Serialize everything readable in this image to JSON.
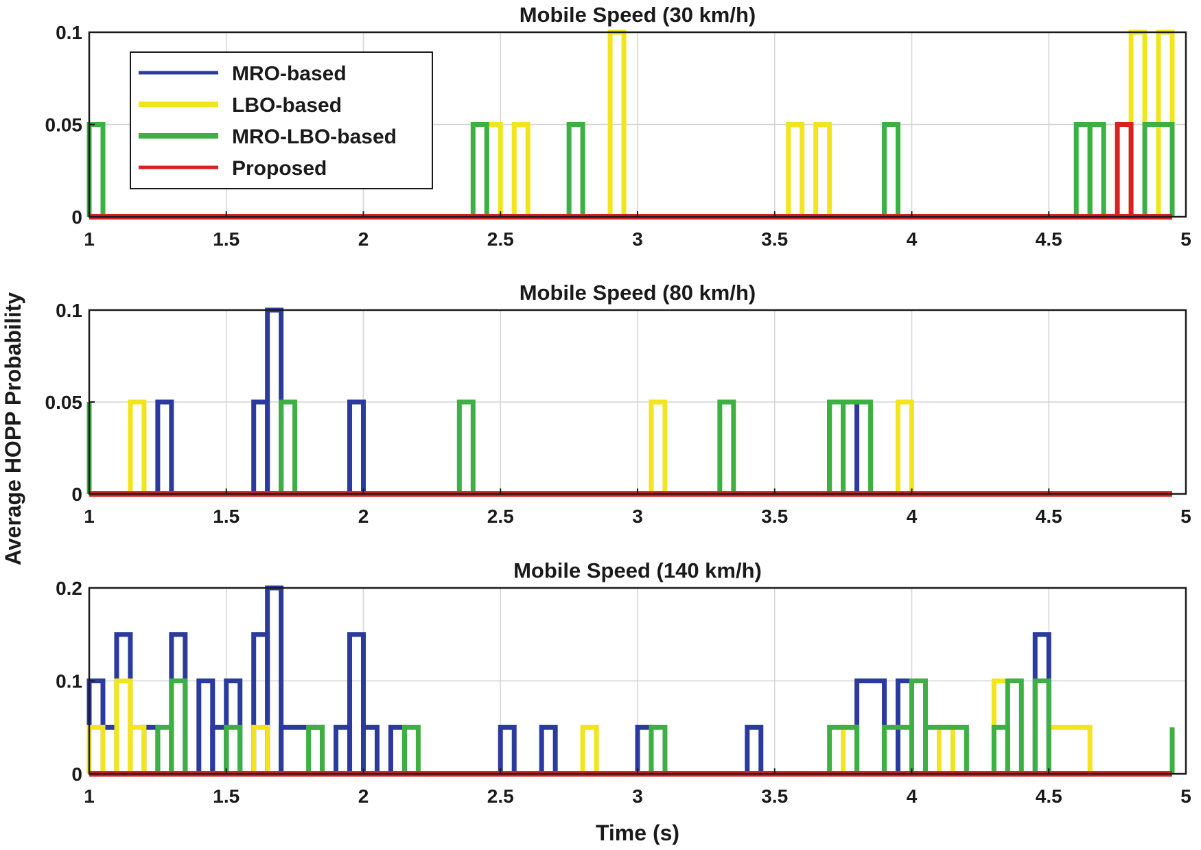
{
  "ylabel": "Average HOPP Probability",
  "xlabel": "Time (s)",
  "series_meta": [
    {
      "name": "MRO-based",
      "color": "#2b3a9e"
    },
    {
      "name": "LBO-based",
      "color": "#f2e51e"
    },
    {
      "name": "MRO-LBO-based",
      "color": "#3cb043"
    },
    {
      "name": "Proposed",
      "color": "#d92121"
    }
  ],
  "chart_data": [
    {
      "type": "line",
      "title": "Mobile Speed (30 km/h)",
      "xlim": [
        1,
        5
      ],
      "ylim": [
        0,
        0.1
      ],
      "xticks": [
        "1",
        "1.5",
        "2",
        "2.5",
        "3",
        "3.5",
        "4",
        "4.5",
        "5"
      ],
      "yticks": [
        "0",
        "0.05",
        "0.1"
      ],
      "legend": "top-left",
      "series": [
        {
          "name": "MRO-based",
          "pulses": []
        },
        {
          "name": "LBO-based",
          "pulses": [
            [
              2.45,
              2.5,
              0.05
            ],
            [
              2.55,
              2.6,
              0.05
            ],
            [
              2.9,
              2.95,
              0.1
            ],
            [
              3.55,
              3.6,
              0.05
            ],
            [
              3.65,
              3.7,
              0.05
            ],
            [
              4.8,
              4.85,
              0.1
            ],
            [
              4.9,
              4.95,
              0.1
            ]
          ]
        },
        {
          "name": "MRO-LBO-based",
          "pulses": [
            [
              1.0,
              1.05,
              0.05
            ],
            [
              2.4,
              2.45,
              0.05
            ],
            [
              2.75,
              2.8,
              0.05
            ],
            [
              3.9,
              3.95,
              0.05
            ],
            [
              4.6,
              4.65,
              0.05
            ],
            [
              4.65,
              4.7,
              0.05
            ],
            [
              4.85,
              4.95,
              0.05
            ]
          ]
        },
        {
          "name": "Proposed",
          "pulses": [
            [
              4.75,
              4.8,
              0.05
            ]
          ]
        }
      ]
    },
    {
      "type": "line",
      "title": "Mobile Speed (80 km/h)",
      "xlim": [
        1,
        5
      ],
      "ylim": [
        0,
        0.1
      ],
      "xticks": [
        "1",
        "1.5",
        "2",
        "2.5",
        "3",
        "3.5",
        "4",
        "4.5",
        "5"
      ],
      "yticks": [
        "0",
        "0.05",
        "0.1"
      ],
      "series": [
        {
          "name": "MRO-based",
          "pulses": [
            [
              1.25,
              1.3,
              0.05
            ],
            [
              1.6,
              1.65,
              0.05
            ],
            [
              1.65,
              1.7,
              0.1
            ],
            [
              1.95,
              2.0,
              0.05
            ],
            [
              3.7,
              3.8,
              0.05
            ]
          ]
        },
        {
          "name": "LBO-based",
          "pulses": [
            [
              1.15,
              1.2,
              0.05
            ],
            [
              3.05,
              3.1,
              0.05
            ],
            [
              3.95,
              4.0,
              0.05
            ]
          ]
        },
        {
          "name": "MRO-LBO-based",
          "pulses": [
            [
              1.0,
              1.0,
              0.05
            ],
            [
              1.7,
              1.75,
              0.05
            ],
            [
              2.35,
              2.4,
              0.05
            ],
            [
              3.3,
              3.35,
              0.05
            ],
            [
              3.7,
              3.75,
              0.05
            ],
            [
              3.75,
              3.85,
              0.05
            ]
          ]
        },
        {
          "name": "Proposed",
          "pulses": []
        }
      ]
    },
    {
      "type": "line",
      "title": "Mobile Speed (140 km/h)",
      "xlim": [
        1,
        5
      ],
      "ylim": [
        0,
        0.2
      ],
      "xticks": [
        "1",
        "1.5",
        "2",
        "2.5",
        "3",
        "3.5",
        "4",
        "4.5",
        "5"
      ],
      "yticks": [
        "0",
        "0.1",
        "0.2"
      ],
      "series": [
        {
          "name": "MRO-based",
          "pulses": [
            [
              1.0,
              1.05,
              0.1
            ],
            [
              1.05,
              1.1,
              0.05
            ],
            [
              1.1,
              1.15,
              0.15
            ],
            [
              1.2,
              1.25,
              0.05
            ],
            [
              1.3,
              1.35,
              0.15
            ],
            [
              1.4,
              1.45,
              0.1
            ],
            [
              1.45,
              1.5,
              0.05
            ],
            [
              1.5,
              1.55,
              0.1
            ],
            [
              1.6,
              1.65,
              0.15
            ],
            [
              1.65,
              1.7,
              0.2
            ],
            [
              1.7,
              1.85,
              0.05
            ],
            [
              1.9,
              1.95,
              0.05
            ],
            [
              1.95,
              2.0,
              0.15
            ],
            [
              2.0,
              2.05,
              0.05
            ],
            [
              2.1,
              2.15,
              0.05
            ],
            [
              2.5,
              2.55,
              0.05
            ],
            [
              2.65,
              2.7,
              0.05
            ],
            [
              3.0,
              3.05,
              0.05
            ],
            [
              3.4,
              3.45,
              0.05
            ],
            [
              3.8,
              3.9,
              0.1
            ],
            [
              3.95,
              4.0,
              0.1
            ],
            [
              4.45,
              4.5,
              0.15
            ]
          ]
        },
        {
          "name": "LBO-based",
          "pulses": [
            [
              1.0,
              1.05,
              0.05
            ],
            [
              1.1,
              1.15,
              0.1
            ],
            [
              1.15,
              1.2,
              0.05
            ],
            [
              1.6,
              1.65,
              0.05
            ],
            [
              2.8,
              2.85,
              0.05
            ],
            [
              3.75,
              3.8,
              0.05
            ],
            [
              4.1,
              4.15,
              0.05
            ],
            [
              4.3,
              4.35,
              0.1
            ],
            [
              4.5,
              4.65,
              0.05
            ]
          ]
        },
        {
          "name": "MRO-LBO-based",
          "pulses": [
            [
              1.25,
              1.3,
              0.05
            ],
            [
              1.3,
              1.35,
              0.1
            ],
            [
              1.5,
              1.55,
              0.05
            ],
            [
              1.8,
              1.85,
              0.05
            ],
            [
              2.15,
              2.2,
              0.05
            ],
            [
              3.05,
              3.1,
              0.05
            ],
            [
              3.7,
              3.8,
              0.05
            ],
            [
              3.9,
              4.0,
              0.05
            ],
            [
              4.0,
              4.05,
              0.1
            ],
            [
              4.05,
              4.2,
              0.05
            ],
            [
              4.3,
              4.35,
              0.05
            ],
            [
              4.35,
              4.4,
              0.1
            ],
            [
              4.45,
              4.5,
              0.1
            ],
            [
              4.95,
              4.95,
              0.05
            ]
          ]
        },
        {
          "name": "Proposed",
          "pulses": []
        }
      ]
    }
  ]
}
